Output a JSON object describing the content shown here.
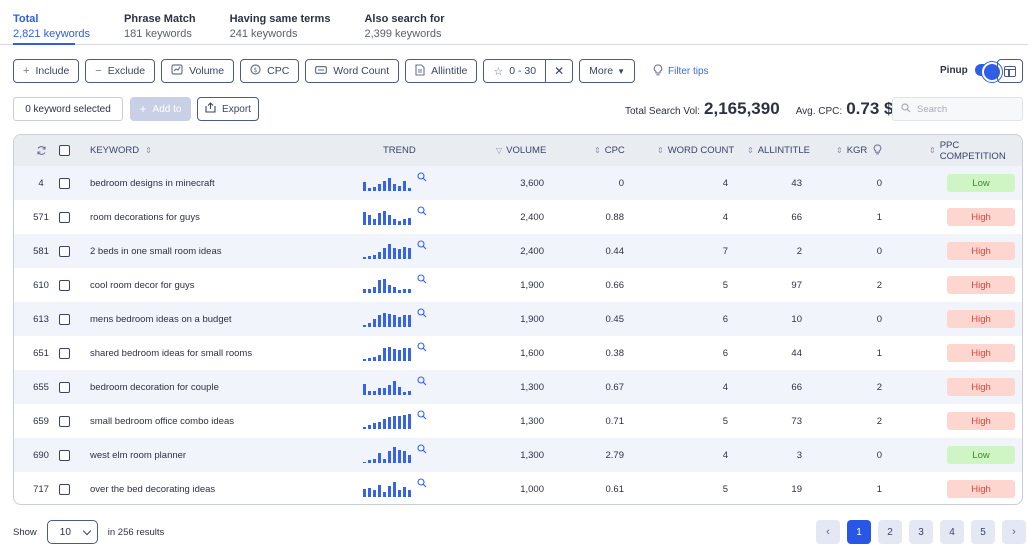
{
  "tabs": [
    {
      "title": "Total",
      "sub": "2,821 keywords"
    },
    {
      "title": "Phrase Match",
      "sub": "181 keywords"
    },
    {
      "title": "Having same terms",
      "sub": "241 keywords"
    },
    {
      "title": "Also search for",
      "sub": "2,399 keywords"
    }
  ],
  "filters": {
    "include": "Include",
    "exclude": "Exclude",
    "volume": "Volume",
    "cpc": "CPC",
    "word_count": "Word Count",
    "allintitle": "Allintitle",
    "range": "0 - 30",
    "more": "More",
    "filter_tips": "Filter tips"
  },
  "pinup": "Pinup",
  "toolbar": {
    "selected": "0 keyword selected",
    "add_to": "Add to",
    "export": "Export",
    "total_search_vol_label": "Total Search Vol:",
    "total_search_vol": "2,165,390",
    "avg_cpc_label": "Avg. CPC:",
    "avg_cpc": "0.73 $",
    "search_placeholder": "Search"
  },
  "table": {
    "headers": {
      "keyword": "KEYWORD",
      "trend": "TREND",
      "volume": "VOLUME",
      "cpc": "CPC",
      "word_count": "WORD COUNT",
      "allintitle": "ALLINTITLE",
      "kgr": "KGR",
      "ppc": "PPC COMPETITION"
    },
    "rows": [
      {
        "idx": "4",
        "keyword": "bedroom designs in minecraft",
        "trend": [
          9,
          3,
          4,
          7,
          10,
          13,
          7,
          5,
          10,
          3
        ],
        "volume": "3,600",
        "cpc": "0",
        "wc": "4",
        "all": "43",
        "kgr": "0",
        "ppc": "Low"
      },
      {
        "idx": "571",
        "keyword": "room decorations for guys",
        "trend": [
          13,
          10,
          6,
          12,
          14,
          10,
          6,
          4,
          6,
          7
        ],
        "volume": "2,400",
        "cpc": "0.88",
        "wc": "4",
        "all": "66",
        "kgr": "1",
        "ppc": "High"
      },
      {
        "idx": "581",
        "keyword": "2 beds in one small room ideas",
        "trend": [
          2,
          3,
          4,
          7,
          11,
          15,
          11,
          10,
          12,
          11
        ],
        "volume": "2,400",
        "cpc": "0.44",
        "wc": "7",
        "all": "2",
        "kgr": "0",
        "ppc": "High"
      },
      {
        "idx": "610",
        "keyword": "cool room decor for guys",
        "trend": [
          4,
          4,
          6,
          13,
          14,
          8,
          6,
          3,
          4,
          4
        ],
        "volume": "1,900",
        "cpc": "0.66",
        "wc": "5",
        "all": "97",
        "kgr": "2",
        "ppc": "High"
      },
      {
        "idx": "613",
        "keyword": "mens bedroom ideas on a budget",
        "trend": [
          2,
          4,
          8,
          12,
          14,
          13,
          12,
          10,
          12,
          12
        ],
        "volume": "1,900",
        "cpc": "0.45",
        "wc": "6",
        "all": "10",
        "kgr": "0",
        "ppc": "High"
      },
      {
        "idx": "651",
        "keyword": "shared bedroom ideas for small rooms",
        "trend": [
          2,
          3,
          4,
          6,
          13,
          14,
          12,
          11,
          13,
          13
        ],
        "volume": "1,600",
        "cpc": "0.38",
        "wc": "6",
        "all": "44",
        "kgr": "1",
        "ppc": "High"
      },
      {
        "idx": "655",
        "keyword": "bedroom decoration for couple",
        "trend": [
          11,
          4,
          4,
          7,
          7,
          10,
          14,
          8,
          3,
          4
        ],
        "volume": "1,300",
        "cpc": "0.67",
        "wc": "4",
        "all": "66",
        "kgr": "2",
        "ppc": "High"
      },
      {
        "idx": "659",
        "keyword": "small bedroom office combo ideas",
        "trend": [
          2,
          4,
          6,
          7,
          10,
          12,
          13,
          13,
          14,
          15
        ],
        "volume": "1,300",
        "cpc": "0.71",
        "wc": "5",
        "all": "73",
        "kgr": "2",
        "ppc": "High"
      },
      {
        "idx": "690",
        "keyword": "west elm room planner",
        "trend": [
          1,
          3,
          4,
          10,
          4,
          12,
          16,
          13,
          12,
          8
        ],
        "volume": "1,300",
        "cpc": "2.79",
        "wc": "4",
        "all": "3",
        "kgr": "0",
        "ppc": "Low"
      },
      {
        "idx": "717",
        "keyword": "over the bed decorating ideas",
        "trend": [
          8,
          9,
          7,
          12,
          5,
          11,
          15,
          7,
          10,
          7
        ],
        "volume": "1,000",
        "cpc": "0.61",
        "wc": "5",
        "all": "19",
        "kgr": "1",
        "ppc": "High"
      }
    ]
  },
  "footer": {
    "show_label": "Show",
    "page_size": "10",
    "results": "in 256 results",
    "pages": [
      "1",
      "2",
      "3",
      "4",
      "5"
    ]
  },
  "colors": {
    "accent": "#2e5fe6",
    "low_bg": "#cef5c3",
    "high_bg": "#fcd6cf"
  }
}
